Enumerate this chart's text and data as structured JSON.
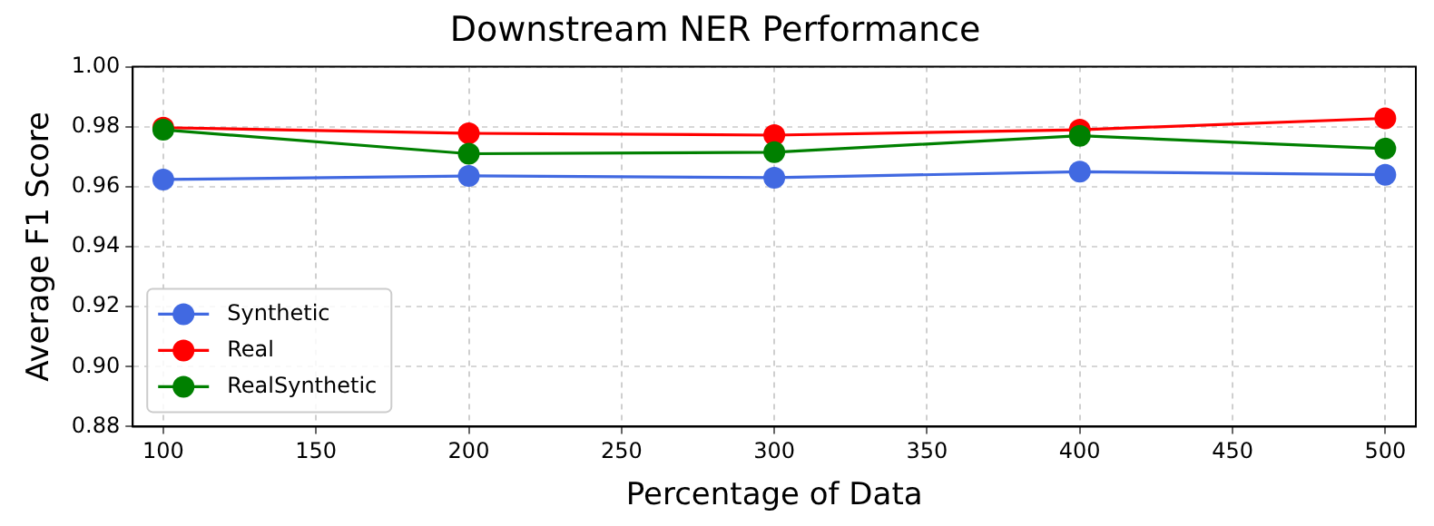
{
  "chart_data": {
    "type": "line",
    "title": "Downstream NER Performance",
    "xlabel": "Percentage of Data",
    "ylabel": "Average F1 Score",
    "x": [
      100,
      200,
      300,
      400,
      500
    ],
    "series": [
      {
        "name": "Synthetic",
        "color": "#4169e1",
        "values": [
          0.9624,
          0.9636,
          0.963,
          0.965,
          0.964
        ]
      },
      {
        "name": "Real",
        "color": "#ff0000",
        "values": [
          0.9797,
          0.9778,
          0.9772,
          0.979,
          0.9828
        ]
      },
      {
        "name": "RealSynthetic",
        "color": "#008000",
        "values": [
          0.979,
          0.971,
          0.9715,
          0.977,
          0.9727
        ]
      }
    ],
    "xlim": [
      90,
      510
    ],
    "xticks": [
      100,
      150,
      200,
      250,
      300,
      350,
      400,
      450,
      500
    ],
    "ylim": [
      0.88,
      1.0
    ],
    "yticks": [
      {
        "value": 0.88,
        "label": "0.88"
      },
      {
        "value": 0.9,
        "label": "0.90"
      },
      {
        "value": 0.92,
        "label": "0.92"
      },
      {
        "value": 0.94,
        "label": "0.94"
      },
      {
        "value": 0.96,
        "label": "0.96"
      },
      {
        "value": 0.98,
        "label": "0.98"
      },
      {
        "value": 1.0,
        "label": "1.00"
      }
    ],
    "grid": true,
    "legend": "bottom left",
    "marker": "circle",
    "line_style": "solid"
  }
}
